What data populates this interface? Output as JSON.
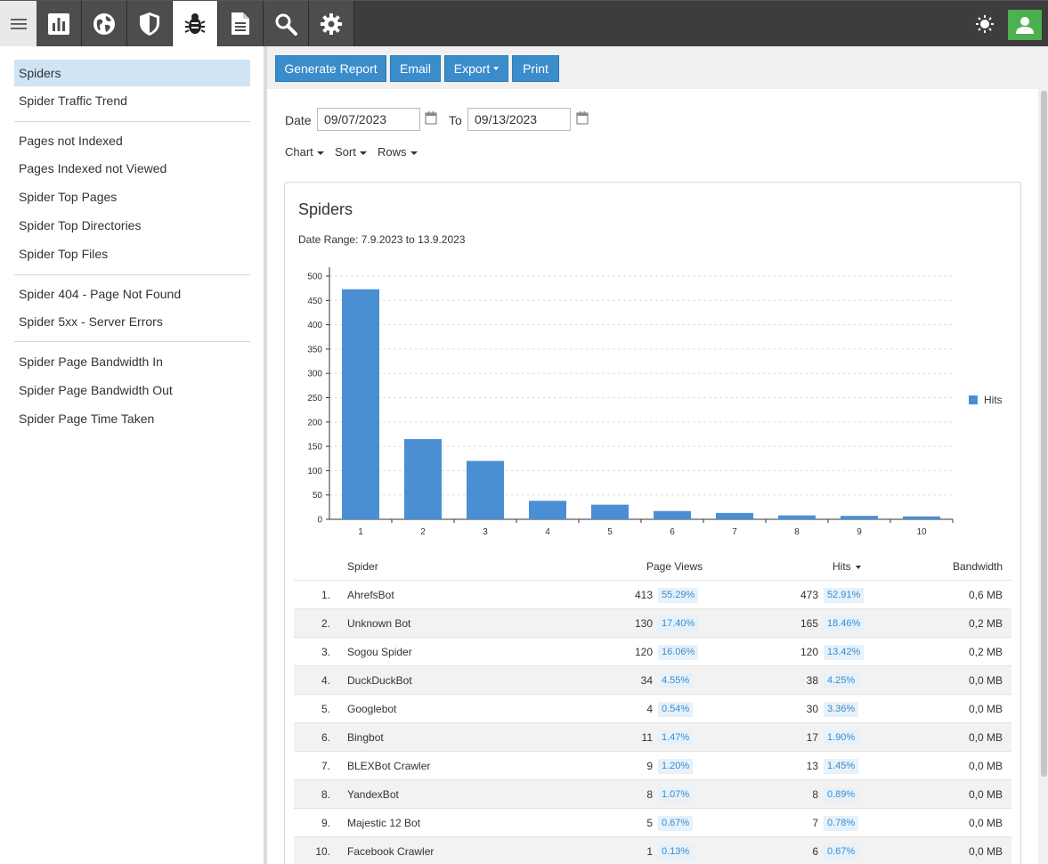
{
  "nav": {
    "icons": [
      "menu-icon",
      "bar-chart-icon",
      "globe-icon",
      "shield-icon",
      "bug-icon",
      "document-icon",
      "search-icon",
      "gear-icon",
      "sun-icon",
      "user-icon"
    ],
    "active": "bug-icon"
  },
  "sidebar": {
    "items": [
      {
        "label": "Spiders",
        "active": true
      },
      {
        "label": "Spider Traffic Trend"
      },
      {
        "label": "Pages not Indexed"
      },
      {
        "label": "Pages Indexed not Viewed"
      },
      {
        "label": "Spider Top Pages"
      },
      {
        "label": "Spider Top Directories"
      },
      {
        "label": "Spider Top Files"
      },
      {
        "label": "Spider 404 - Page Not Found"
      },
      {
        "label": "Spider 5xx - Server Errors"
      },
      {
        "label": "Spider Page Bandwidth In"
      },
      {
        "label": "Spider Page Bandwidth Out"
      },
      {
        "label": "Spider Page Time Taken"
      }
    ]
  },
  "toolbar": {
    "generate": "Generate Report",
    "email": "Email",
    "export": "Export",
    "print": "Print"
  },
  "filters": {
    "date_label": "Date",
    "date_from": "09/07/2023",
    "to_label": "To",
    "date_to": "09/13/2023",
    "chart": "Chart",
    "sort": "Sort",
    "rows": "Rows"
  },
  "report": {
    "title": "Spiders",
    "range": "Date Range: 7.9.2023 to 13.9.2023"
  },
  "colors": {
    "accent": "#3a8ccb",
    "bar": "#4a8fd4",
    "topbar": "#3d3d3d",
    "user": "#4caf50"
  },
  "chart_data": {
    "type": "bar",
    "categories": [
      "1",
      "2",
      "3",
      "4",
      "5",
      "6",
      "7",
      "8",
      "9",
      "10"
    ],
    "series": [
      {
        "name": "Hits",
        "values": [
          473,
          165,
          120,
          38,
          30,
          17,
          13,
          8,
          7,
          6
        ]
      }
    ],
    "ylim": [
      0,
      500
    ],
    "yticks": [
      0,
      50,
      100,
      150,
      200,
      250,
      300,
      350,
      400,
      450,
      500
    ],
    "legend": "right",
    "grid": true
  },
  "table": {
    "headers": {
      "spider": "Spider",
      "views": "Page Views",
      "hits": "Hits",
      "bandwidth": "Bandwidth"
    },
    "rows": [
      {
        "rank": "1.",
        "name": "AhrefsBot",
        "views": "413",
        "views_pct": "55.29%",
        "hits": "473",
        "hits_pct": "52.91%",
        "bw": "0,6 MB"
      },
      {
        "rank": "2.",
        "name": "Unknown Bot",
        "views": "130",
        "views_pct": "17.40%",
        "hits": "165",
        "hits_pct": "18.46%",
        "bw": "0,2 MB"
      },
      {
        "rank": "3.",
        "name": "Sogou Spider",
        "views": "120",
        "views_pct": "16.06%",
        "hits": "120",
        "hits_pct": "13.42%",
        "bw": "0,2 MB"
      },
      {
        "rank": "4.",
        "name": "DuckDuckBot",
        "views": "34",
        "views_pct": "4.55%",
        "hits": "38",
        "hits_pct": "4.25%",
        "bw": "0,0 MB"
      },
      {
        "rank": "5.",
        "name": "Googlebot",
        "views": "4",
        "views_pct": "0.54%",
        "hits": "30",
        "hits_pct": "3.36%",
        "bw": "0,0 MB"
      },
      {
        "rank": "6.",
        "name": "Bingbot",
        "views": "11",
        "views_pct": "1.47%",
        "hits": "17",
        "hits_pct": "1.90%",
        "bw": "0,0 MB"
      },
      {
        "rank": "7.",
        "name": "BLEXBot Crawler",
        "views": "9",
        "views_pct": "1.20%",
        "hits": "13",
        "hits_pct": "1.45%",
        "bw": "0,0 MB"
      },
      {
        "rank": "8.",
        "name": "YandexBot",
        "views": "8",
        "views_pct": "1.07%",
        "hits": "8",
        "hits_pct": "0.89%",
        "bw": "0,0 MB"
      },
      {
        "rank": "9.",
        "name": "Majestic 12 Bot",
        "views": "5",
        "views_pct": "0.67%",
        "hits": "7",
        "hits_pct": "0.78%",
        "bw": "0,0 MB"
      },
      {
        "rank": "10.",
        "name": "Facebook Crawler",
        "views": "1",
        "views_pct": "0.13%",
        "hits": "6",
        "hits_pct": "0.67%",
        "bw": "0,0 MB"
      }
    ]
  }
}
